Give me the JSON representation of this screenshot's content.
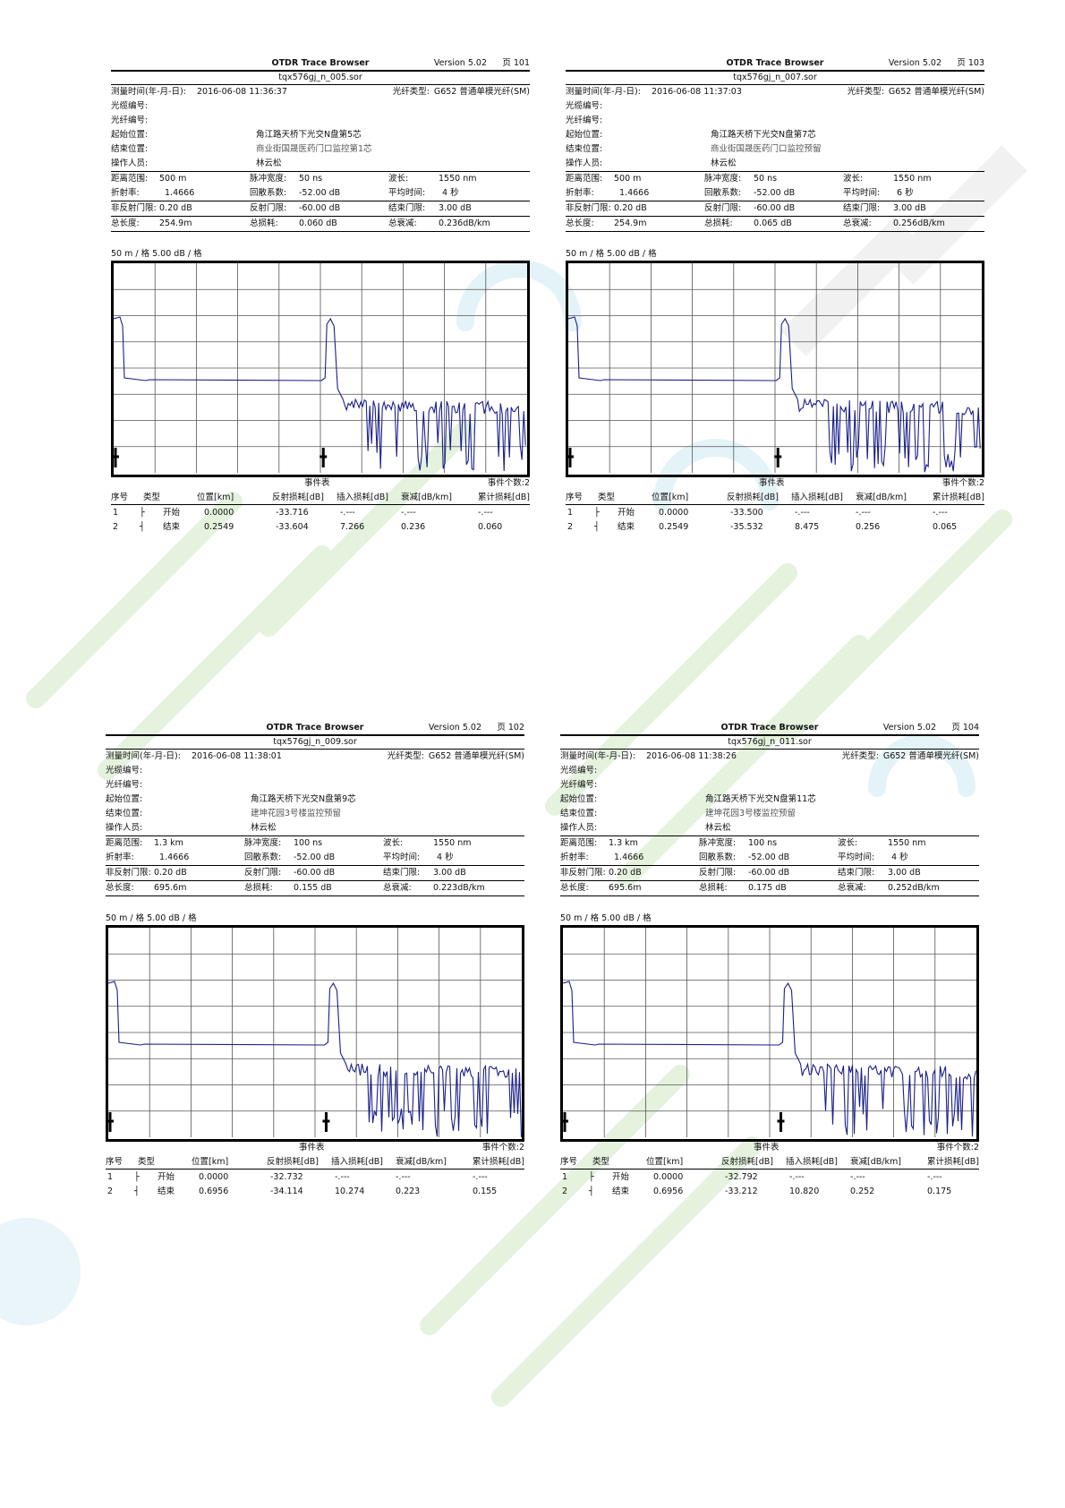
{
  "header": {
    "title": "OTDR Trace Browser",
    "version": "Version 5.02"
  },
  "labels": {
    "measure_time": "测量时间(年-月-日):",
    "fiber_type": "光纤类型:",
    "cable_id": "光缆编号:",
    "fiber_id": "光纤编号:",
    "start_loc": "起始位置:",
    "end_loc": "结束位置:",
    "operator": "操作人员:",
    "range": "距离范围:",
    "pulse": "脉冲宽度:",
    "wavelength": "波长:",
    "ior": "折射率:",
    "backscatter": "回散系数:",
    "avg_time": "平均时间:",
    "nonrefl_th": "非反射门限:",
    "refl_th": "反射门限:",
    "end_th": "结束门限:",
    "total_len": "总长度:",
    "total_loss": "总损耗:",
    "atten": "总衰减:",
    "event_table": "事件表",
    "event_count": "事件个数:2",
    "col_no": "序号",
    "col_type": "类型",
    "col_pos": "位置[km]",
    "col_refl": "反射损耗[dB]",
    "col_ins": "插入损耗[dB]",
    "col_att": "衰减[dB/km]",
    "col_cum": "累计损耗[dB]"
  },
  "reports": [
    {
      "page": "页 101",
      "file": "tqx576gj_n_005.sor",
      "measure_time": "2016-06-08  11:36:37",
      "fiber_type": "G652 普通单模光纤(SM)",
      "start_loc": "角江路天桥下光交N盘第5芯",
      "end_loc": "商业街国晟医药门口监控第1芯",
      "operator": "林云松",
      "range": "500 m",
      "pulse": "50 ns",
      "wavelength": "1550 nm",
      "ior": "1.4666",
      "backscatter": "-52.00 dB",
      "avg_time": "4 秒",
      "nonrefl_th": "0.20 dB",
      "refl_th": "-60.00 dB",
      "end_th": "3.00 dB",
      "total_len": "254.9m",
      "total_loss": "0.060 dB",
      "atten": "0.236dB/km",
      "scale": "50 m / 格    5.00 dB / 格",
      "events": [
        {
          "no": "1",
          "type": "开始",
          "pos": "0.0000",
          "refl": "-33.716",
          "ins": "-.---",
          "att": "-.---",
          "cum": "-.---"
        },
        {
          "no": "2",
          "type": "结束",
          "pos": "0.2549",
          "refl": "-33.604",
          "ins": "7.266",
          "att": "0.236",
          "cum": "0.060"
        }
      ]
    },
    {
      "page": "页 103",
      "file": "tqx576gj_n_007.sor",
      "measure_time": "2016-06-08  11:37:03",
      "fiber_type": "G652 普通单模光纤(SM)",
      "start_loc": "角江路天桥下光交N盘第7芯",
      "end_loc": "商业街国晟医药门口监控预留",
      "operator": "林云松",
      "range": "500 m",
      "pulse": "50 ns",
      "wavelength": "1550 nm",
      "ior": "1.4666",
      "backscatter": "-52.00 dB",
      "avg_time": "6 秒",
      "nonrefl_th": "0.20 dB",
      "refl_th": "-60.00 dB",
      "end_th": "3.00 dB",
      "total_len": "254.9m",
      "total_loss": "0.065 dB",
      "atten": "0.256dB/km",
      "scale": "50 m / 格    5.00 dB / 格",
      "events": [
        {
          "no": "1",
          "type": "开始",
          "pos": "0.0000",
          "refl": "-33.500",
          "ins": "-.---",
          "att": "-.---",
          "cum": "-.---"
        },
        {
          "no": "2",
          "type": "结束",
          "pos": "0.2549",
          "refl": "-35.532",
          "ins": "8.475",
          "att": "0.256",
          "cum": "0.065"
        }
      ]
    },
    {
      "page": "页 102",
      "file": "tqx576gj_n_009.sor",
      "measure_time": "2016-06-08  11:38:01",
      "fiber_type": "G652 普通单模光纤(SM)",
      "start_loc": "角江路天桥下光交N盘第9芯",
      "end_loc": "建坤花园3号楼监控预留",
      "operator": "林云松",
      "range": "1.3 km",
      "pulse": "100 ns",
      "wavelength": "1550 nm",
      "ior": "1.4666",
      "backscatter": "-52.00 dB",
      "avg_time": "4 秒",
      "nonrefl_th": "0.20 dB",
      "refl_th": "-60.00 dB",
      "end_th": "3.00 dB",
      "total_len": "695.6m",
      "total_loss": "0.155 dB",
      "atten": "0.223dB/km",
      "scale": "50 m / 格    5.00 dB / 格",
      "events": [
        {
          "no": "1",
          "type": "开始",
          "pos": "0.0000",
          "refl": "-32.732",
          "ins": "-.---",
          "att": "-.---",
          "cum": "-.---"
        },
        {
          "no": "2",
          "type": "结束",
          "pos": "0.6956",
          "refl": "-34.114",
          "ins": "10.274",
          "att": "0.223",
          "cum": "0.155"
        }
      ]
    },
    {
      "page": "页 104",
      "file": "tqx576gj_n_011.sor",
      "measure_time": "2016-06-08  11:38:26",
      "fiber_type": "G652 普通单模光纤(SM)",
      "start_loc": "角江路天桥下光交N盘第11芯",
      "end_loc": "建坤花园3号楼监控预留",
      "operator": "林云松",
      "range": "1.3 km",
      "pulse": "100 ns",
      "wavelength": "1550 nm",
      "ior": "1.4666",
      "backscatter": "-52.00 dB",
      "avg_time": "4 秒",
      "nonrefl_th": "0.20 dB",
      "refl_th": "-60.00 dB",
      "end_th": "3.00 dB",
      "total_len": "695.6m",
      "total_loss": "0.175 dB",
      "atten": "0.252dB/km",
      "scale": "50 m / 格    5.00 dB / 格",
      "events": [
        {
          "no": "1",
          "type": "开始",
          "pos": "0.0000",
          "refl": "-32.792",
          "ins": "-.---",
          "att": "-.---",
          "cum": "-.---"
        },
        {
          "no": "2",
          "type": "结束",
          "pos": "0.6956",
          "refl": "-33.212",
          "ins": "10.820",
          "att": "0.252",
          "cum": "0.175"
        }
      ]
    }
  ],
  "colors": {
    "trace": "#1a1f8c",
    "grid": "#555555",
    "watermark": "#d8eed0"
  }
}
